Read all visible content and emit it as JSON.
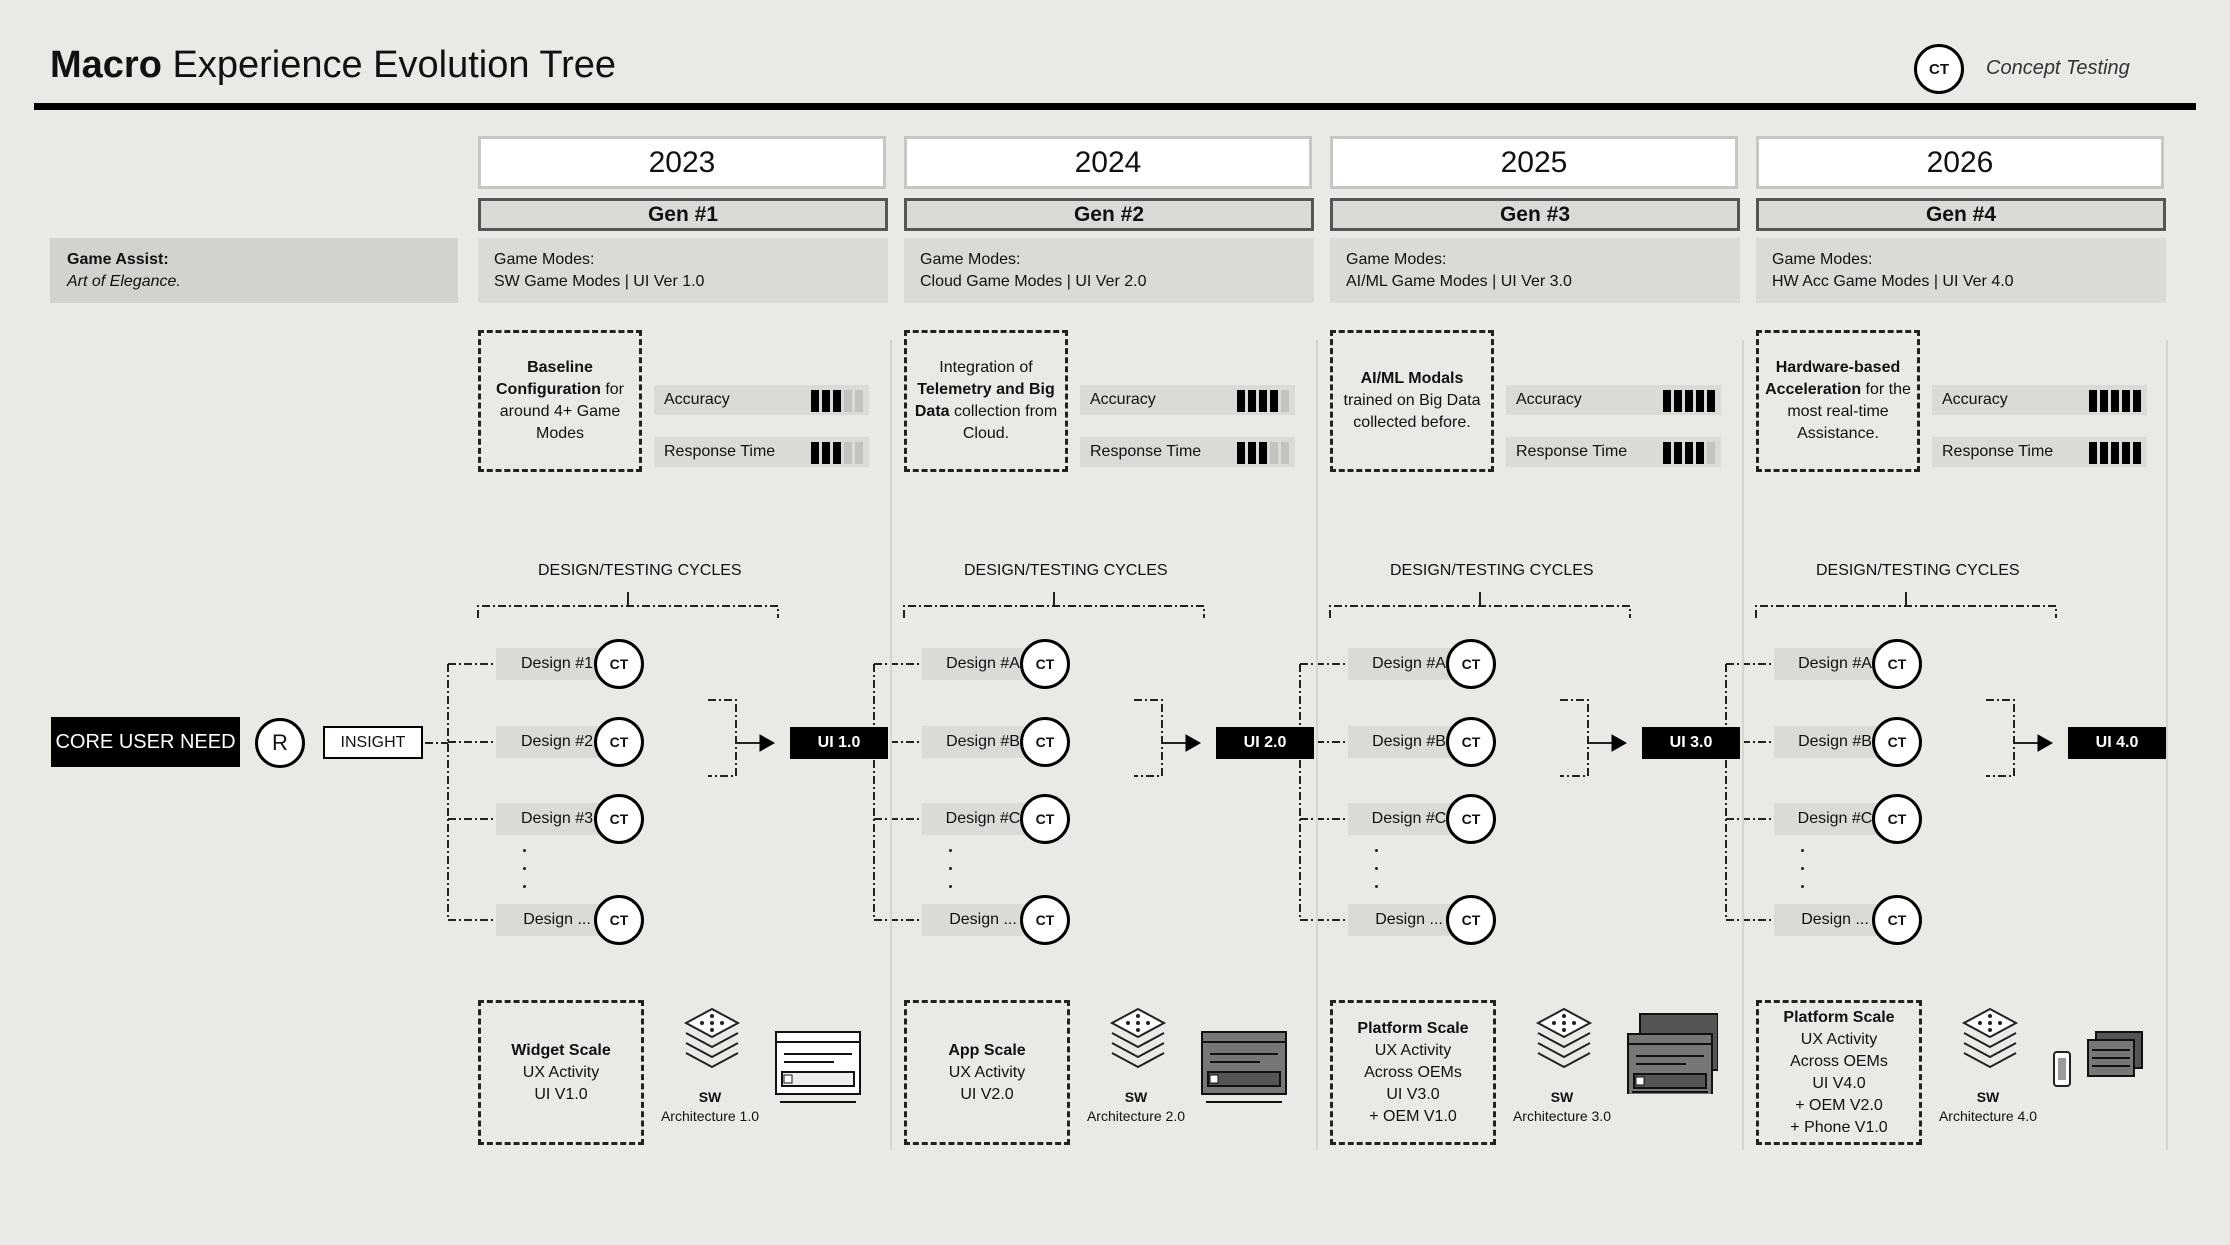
{
  "header": {
    "title_bold": "Macro",
    "title_rest": " Experience Evolution Tree",
    "legend_badge": "CT",
    "legend_label": "Concept Testing"
  },
  "game_assist": {
    "title": "Game Assist:",
    "subtitle": "Art of Elegance."
  },
  "root": {
    "core_need": "CORE USER NEED",
    "r_badge": "R",
    "insight": "INSIGHT"
  },
  "columns": [
    {
      "year": "2023",
      "gen": "Gen #1",
      "modes_label": "Game Modes:",
      "modes_value": "SW Game Modes | UI Ver 1.0",
      "feature_html": [
        "",
        "Baseline Configuration",
        " for around 4+ Game Modes"
      ],
      "feature_bold": "Baseline Configuration",
      "feature_rest": " for around 4+ Game Modes",
      "accuracy_label": "Accuracy",
      "accuracy_level": 3,
      "response_label": "Response Time",
      "response_level": 3,
      "cycles_label": "DESIGN/TESTING CYCLES",
      "designs": [
        "Design #1",
        "Design #2",
        "Design #3",
        "Design ..."
      ],
      "ct": "CT",
      "ui": "UI 1.0",
      "scale_bold": "Widget Scale",
      "scale_lines": [
        "UX Activity",
        "UI V1.0"
      ],
      "sw": "SW",
      "arch": "Architecture 1.0"
    },
    {
      "year": "2024",
      "gen": "Gen #2",
      "modes_label": "Game Modes:",
      "modes_value": "Cloud Game Modes | UI Ver 2.0",
      "feature_pre": "Integration of ",
      "feature_bold": "Telemetry and Big Data",
      "feature_rest": " collection from Cloud.",
      "accuracy_label": "Accuracy",
      "accuracy_level": 4,
      "response_label": "Response Time",
      "response_level": 3,
      "cycles_label": "DESIGN/TESTING CYCLES",
      "designs": [
        "Design #A",
        "Design #B",
        "Design #C",
        "Design ..."
      ],
      "ct": "CT",
      "ui": "UI 2.0",
      "scale_bold": "App Scale",
      "scale_lines": [
        "UX Activity",
        "UI V2.0"
      ],
      "sw": "SW",
      "arch": "Architecture 2.0"
    },
    {
      "year": "2025",
      "gen": "Gen #3",
      "modes_label": "Game Modes:",
      "modes_value": "AI/ML Game Modes | UI Ver 3.0",
      "feature_bold": "AI/ML Modals",
      "feature_rest": " trained on Big Data collected before.",
      "accuracy_label": "Accuracy",
      "accuracy_level": 5,
      "response_label": "Response Time",
      "response_level": 4,
      "cycles_label": "DESIGN/TESTING CYCLES",
      "designs": [
        "Design #A",
        "Design #B",
        "Design #C",
        "Design ..."
      ],
      "ct": "CT",
      "ui": "UI 3.0",
      "scale_bold": "Platform Scale",
      "scale_lines": [
        "UX Activity",
        "Across OEMs",
        "UI V3.0",
        "+ OEM V1.0"
      ],
      "sw": "SW",
      "arch": "Architecture 3.0"
    },
    {
      "year": "2026",
      "gen": "Gen #4",
      "modes_label": "Game Modes:",
      "modes_value": "HW Acc Game Modes | UI Ver 4.0",
      "feature_bold": "Hardware-based Acceleration",
      "feature_rest": " for the most real-time Assistance.",
      "accuracy_label": "Accuracy",
      "accuracy_level": 5,
      "response_label": "Response Time",
      "response_level": 5,
      "cycles_label": "DESIGN/TESTING CYCLES",
      "designs": [
        "Design #A",
        "Design #B",
        "Design #C",
        "Design ..."
      ],
      "ct": "CT",
      "ui": "UI 4.0",
      "scale_bold": "Platform Scale",
      "scale_lines": [
        "UX Activity",
        "Across OEMs",
        "UI V4.0",
        "+ OEM V2.0",
        "+ Phone V1.0"
      ],
      "sw": "SW",
      "arch": "Architecture 4.0"
    }
  ]
}
